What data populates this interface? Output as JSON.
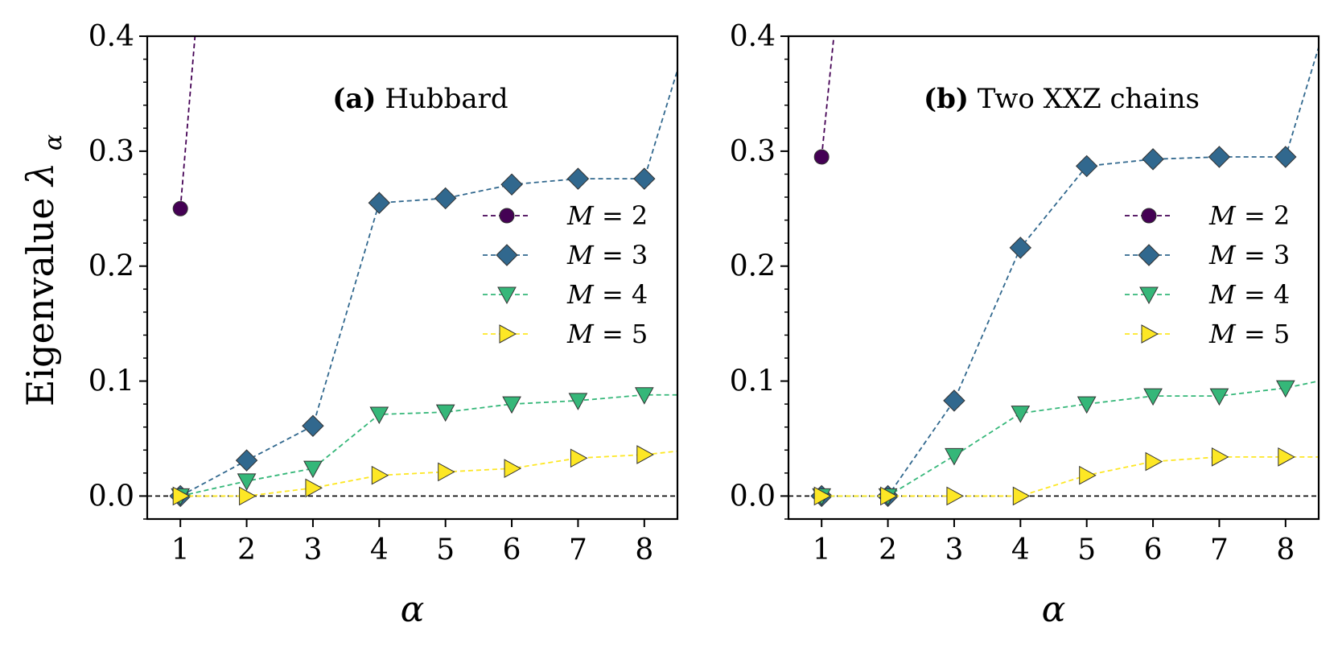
{
  "figure": {
    "ylabel_main": "Eigenvalue",
    "ylabel_symbol": "λ",
    "ylabel_subscript": "α"
  },
  "chart_data": [
    {
      "type": "line",
      "panel_tag": "(a)",
      "title": "Hubbard",
      "xlabel": "α",
      "ylabel": "Eigenvalue λα",
      "xlim": [
        0.5,
        8.5
      ],
      "ylim": [
        -0.02,
        0.4
      ],
      "xticks": [
        1,
        2,
        3,
        4,
        5,
        6,
        7,
        8
      ],
      "yticks": [
        0.0,
        0.1,
        0.2,
        0.3,
        0.4
      ],
      "ytick_labels": [
        "0.0",
        "0.1",
        "0.2",
        "0.3",
        "0.4"
      ],
      "grid": false,
      "zero_line": true,
      "legend_position": "center-right",
      "series": [
        {
          "name": "M = 2",
          "legend_var": "M",
          "legend_val": "2",
          "color": "#440154",
          "marker": "circle",
          "x": [
            1,
            1.25
          ],
          "y": [
            0.25,
            0.42
          ],
          "marker_count": 1
        },
        {
          "name": "M = 3",
          "legend_var": "M",
          "legend_val": "3",
          "color": "#31688e",
          "marker": "diamond",
          "x": [
            1,
            2,
            3,
            4,
            5,
            6,
            7,
            8,
            8.55
          ],
          "y": [
            0.0,
            0.031,
            0.061,
            0.255,
            0.259,
            0.271,
            0.276,
            0.276,
            0.38
          ],
          "marker_count": 8
        },
        {
          "name": "M = 4",
          "legend_var": "M",
          "legend_val": "4",
          "color": "#35b779",
          "marker": "triangle-down",
          "x": [
            1,
            2,
            3,
            4,
            5,
            6,
            7,
            8,
            8.5
          ],
          "y": [
            0.0,
            0.013,
            0.024,
            0.071,
            0.073,
            0.08,
            0.083,
            0.088,
            0.088
          ],
          "marker_count": 8
        },
        {
          "name": "M = 5",
          "legend_var": "M",
          "legend_val": "5",
          "color": "#fde725",
          "marker": "triangle-right",
          "x": [
            1,
            2,
            3,
            4,
            5,
            6,
            7,
            8,
            8.5
          ],
          "y": [
            0.0,
            0.0,
            0.007,
            0.018,
            0.021,
            0.024,
            0.033,
            0.036,
            0.039
          ],
          "marker_count": 8
        }
      ]
    },
    {
      "type": "line",
      "panel_tag": "(b)",
      "title": "Two XXZ chains",
      "xlabel": "α",
      "ylabel": "",
      "xlim": [
        0.5,
        8.5
      ],
      "ylim": [
        -0.02,
        0.4
      ],
      "xticks": [
        1,
        2,
        3,
        4,
        5,
        6,
        7,
        8
      ],
      "yticks": [
        0.0,
        0.1,
        0.2,
        0.3,
        0.4
      ],
      "ytick_labels": [
        "0.0",
        "0.1",
        "0.2",
        "0.3",
        "0.4"
      ],
      "grid": false,
      "zero_line": true,
      "legend_position": "center-right",
      "series": [
        {
          "name": "M = 2",
          "legend_var": "M",
          "legend_val": "2",
          "color": "#440154",
          "marker": "circle",
          "x": [
            1,
            1.22
          ],
          "y": [
            0.295,
            0.42
          ],
          "marker_count": 1
        },
        {
          "name": "M = 3",
          "legend_var": "M",
          "legend_val": "3",
          "color": "#31688e",
          "marker": "diamond",
          "x": [
            1,
            2,
            3,
            4,
            5,
            6,
            7,
            8,
            8.55
          ],
          "y": [
            0.0,
            0.0,
            0.083,
            0.216,
            0.287,
            0.293,
            0.295,
            0.295,
            0.4
          ],
          "marker_count": 8
        },
        {
          "name": "M = 4",
          "legend_var": "M",
          "legend_val": "4",
          "color": "#35b779",
          "marker": "triangle-down",
          "x": [
            1,
            2,
            3,
            4,
            5,
            6,
            7,
            8,
            8.5
          ],
          "y": [
            0.0,
            0.0,
            0.035,
            0.072,
            0.08,
            0.087,
            0.087,
            0.094,
            0.1
          ],
          "marker_count": 8
        },
        {
          "name": "M = 5",
          "legend_var": "M",
          "legend_val": "5",
          "color": "#fde725",
          "marker": "triangle-right",
          "x": [
            1,
            2,
            3,
            4,
            5,
            6,
            7,
            8,
            8.5
          ],
          "y": [
            0.0,
            0.0,
            0.0,
            0.0,
            0.018,
            0.03,
            0.034,
            0.034,
            0.034
          ],
          "marker_count": 8
        }
      ]
    }
  ]
}
